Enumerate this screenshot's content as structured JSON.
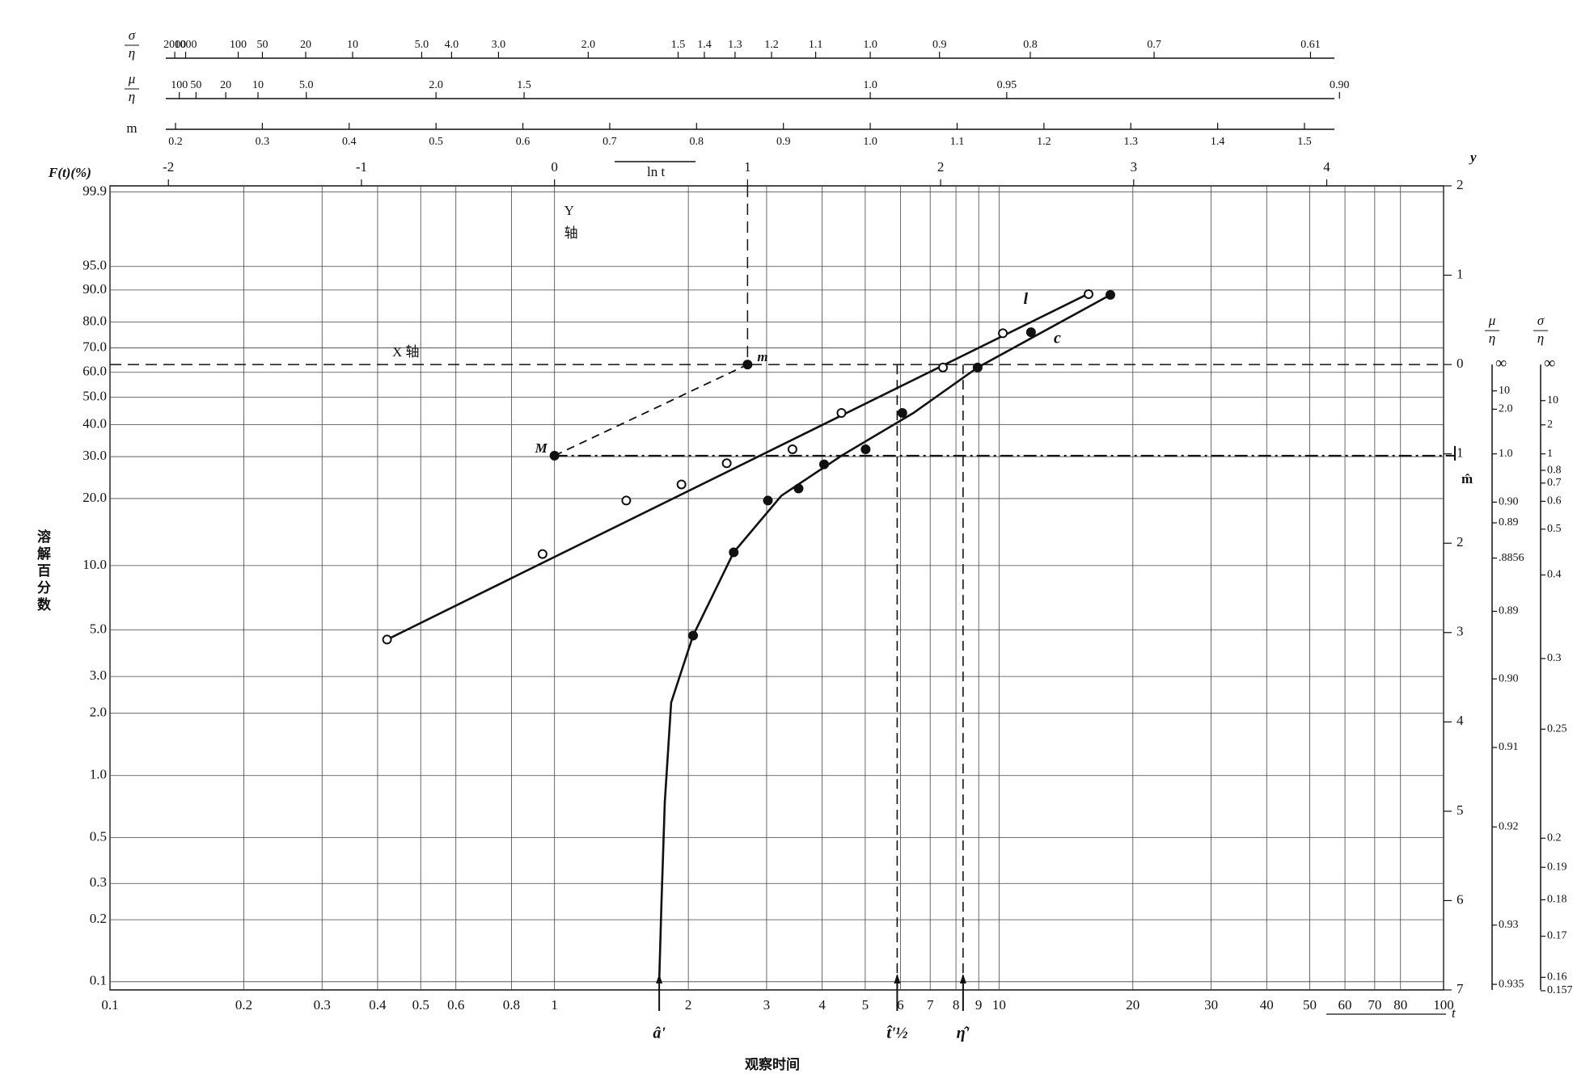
{
  "chart_data": {
    "type": "weibull_probability",
    "x_label": "观察时间",
    "y_label": "溶解百分数",
    "y_axis_title": "F(t)(%)",
    "y2_axis_title": "y",
    "x2_axis_title": "ln t",
    "x_end_label": "t",
    "xscale": "log",
    "xlim": [
      0.1,
      100
    ],
    "xticks": [
      0.1,
      0.2,
      0.3,
      0.4,
      0.5,
      0.6,
      0.8,
      1,
      2,
      3,
      4,
      5,
      6,
      7,
      8,
      9,
      10,
      20,
      30,
      40,
      50,
      60,
      70,
      80,
      100
    ],
    "x2lim": [
      -2.302585,
      4.60517
    ],
    "x2ticks": [
      -2,
      -1,
      0,
      1,
      2,
      3,
      4
    ],
    "yscale": "weibull",
    "ylim": [
      0.0912,
      99.938
    ],
    "yticks": [
      99.9,
      {
        "value": 95,
        "label": "95.0"
      },
      {
        "value": 90,
        "label": "90.0"
      },
      {
        "value": 80,
        "label": "80.0"
      },
      {
        "value": 70,
        "label": "70.0"
      },
      {
        "value": 60,
        "label": "60.0"
      },
      {
        "value": 50,
        "label": "50.0"
      },
      {
        "value": 40,
        "label": "40.0"
      },
      {
        "value": 30,
        "label": "30.0"
      },
      {
        "value": 20,
        "label": "20.0"
      },
      {
        "value": 10,
        "label": "10.0"
      },
      {
        "value": 5,
        "label": "5.0"
      },
      {
        "value": 3,
        "label": "3.0"
      },
      {
        "value": 2,
        "label": "2.0"
      },
      {
        "value": 1,
        "label": "1.0"
      },
      0.5,
      0.3,
      0.2,
      0.1
    ],
    "y2lim": [
      -7,
      2
    ],
    "y2ticks": [
      2,
      1,
      0,
      {
        "value": -1,
        "label": "1"
      },
      {
        "value": -2,
        "label": "2"
      },
      {
        "value": -3,
        "label": "3"
      },
      {
        "value": -4,
        "label": "4"
      },
      {
        "value": -5,
        "label": "5"
      },
      {
        "value": -6,
        "label": "6"
      },
      {
        "value": -7,
        "label": "7"
      }
    ],
    "grid": true,
    "series": [
      {
        "name": "l",
        "marker": "open",
        "color": "#111111",
        "x": [
          0.42,
          0.94,
          1.45,
          1.93,
          2.44,
          3.43,
          4.42,
          7.48,
          10.2,
          15.9
        ],
        "values": [
          4.5,
          11.3,
          19.6,
          23.0,
          28.2,
          32.1,
          44.1,
          62.0,
          75.8,
          88.9
        ],
        "fit": {
          "x": [
            0.42,
            16.2
          ],
          "values": [
            4.5,
            89.5
          ]
        }
      },
      {
        "name": "c",
        "marker": "filled",
        "color": "#111111",
        "x": [
          2.05,
          2.53,
          3.02,
          3.54,
          4.04,
          5.01,
          6.06,
          8.95,
          11.8,
          17.8
        ],
        "values": [
          4.7,
          11.5,
          19.6,
          22.1,
          27.9,
          32.1,
          44.1,
          62.0,
          76.2,
          88.7
        ],
        "fit": {
          "x": [
            1.72,
            1.74,
            1.77,
            1.83,
            2.05,
            2.53,
            3.24,
            4.44,
            6.42,
            8.95,
            17.8
          ],
          "values": [
            0.1,
            0.24,
            0.74,
            2.25,
            4.7,
            11.5,
            20.6,
            30.4,
            44.1,
            62.0,
            88.7
          ]
        }
      }
    ],
    "points": [
      {
        "label": "M",
        "x": 1,
        "y2": -1.02
      },
      {
        "label": "m",
        "x": 2.718,
        "y2": 0
      }
    ],
    "x_axis_text": "X 轴",
    "y_axis_text": [
      "Y",
      "轴"
    ],
    "m_hat_label": "m̂",
    "markers": [
      {
        "label": "â'",
        "x": 1.72,
        "style": "arrow"
      },
      {
        "label": "t̂'½",
        "x": 5.9,
        "style": "dashed"
      },
      {
        "label": "η̂'",
        "x": 8.3,
        "style": "dashed"
      }
    ],
    "m_scale": {
      "label": "m",
      "lim": [
        0.2,
        1.5
      ],
      "ticks": [
        0.2,
        0.3,
        0.4,
        0.5,
        0.6,
        0.7,
        0.8,
        0.9,
        {
          "value": 1.0,
          "label": "1.0"
        },
        1.1,
        1.2,
        1.3,
        1.4,
        1.5
      ]
    },
    "mean_scale": {
      "numerator": "μ",
      "denominator": "η",
      "ticks": [
        100,
        50,
        20,
        10,
        {
          "value": 5,
          "label": "5.0"
        },
        {
          "value": 2,
          "label": "2.0"
        },
        1.5,
        {
          "value": 1,
          "label": "1.0"
        },
        0.95,
        {
          "value": 0.9,
          "label": "0.90"
        }
      ]
    },
    "sd_scale": {
      "numerator": "σ",
      "denominator": "η",
      "ticks": [
        2000,
        1000,
        100,
        50,
        20,
        10,
        {
          "value": 5,
          "label": "5.0"
        },
        {
          "value": 4,
          "label": "4.0"
        },
        {
          "value": 3,
          "label": "3.0"
        },
        {
          "value": 2,
          "label": "2.0"
        },
        1.5,
        1.4,
        1.3,
        1.2,
        1.1,
        {
          "value": 1,
          "label": "1.0"
        },
        0.9,
        0.8,
        0.7,
        0.61
      ]
    },
    "mean_scale_right": {
      "numerator": "μ",
      "denominator": "η",
      "infinity_label": "∞",
      "ticks": [
        10,
        {
          "value": 2,
          "label": "2.0"
        },
        {
          "value": 1,
          "label": "1.0"
        },
        {
          "value": 0.9,
          "label": "0.90"
        },
        0.89,
        {
          "value": 0.8856,
          "label": ".8856"
        },
        0.89,
        {
          "value": 0.9,
          "label": "0.90"
        },
        0.91,
        0.92,
        0.93,
        0.935
      ]
    },
    "sd_scale_right": {
      "numerator": "σ",
      "denominator": "η",
      "infinity_label": "∞",
      "ticks": [
        10,
        2,
        1,
        0.8,
        0.7,
        0.6,
        0.5,
        0.4,
        0.3,
        0.25,
        0.2,
        0.19,
        0.18,
        0.17,
        0.16,
        0.157
      ]
    }
  }
}
